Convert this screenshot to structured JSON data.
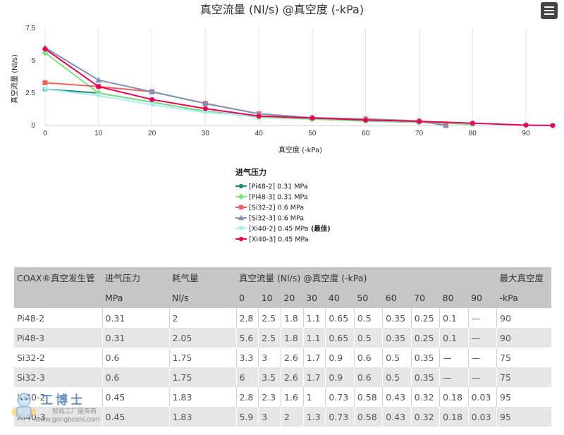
{
  "menu": {
    "icon": "hamburger-menu-icon"
  },
  "chart_data": {
    "type": "line",
    "title": "真空流量 (Nl/s) @真空度 (-kPa)",
    "xlabel": "真空度 (-kPa)",
    "ylabel": "真空流量 (Nl/s)",
    "xlim": [
      0,
      95
    ],
    "ylim": [
      0,
      7.5
    ],
    "x_ticks": [
      0,
      10,
      20,
      30,
      40,
      50,
      60,
      70,
      80,
      90
    ],
    "y_ticks": [
      0,
      2.5,
      5,
      7.5
    ],
    "grid": "vertical",
    "legend": {
      "title": "进气压力",
      "placement": "bottom-center"
    },
    "series": [
      {
        "name": "[Pi48-2] 0.31 MPa",
        "color": "#1a8a7a",
        "marker": "circle",
        "points": [
          [
            0,
            2.8
          ],
          [
            10,
            2.5
          ],
          [
            20,
            1.8
          ],
          [
            30,
            1.1
          ],
          [
            40,
            0.65
          ],
          [
            50,
            0.5
          ],
          [
            60,
            0.35
          ],
          [
            70,
            0.25
          ],
          [
            80,
            0.1
          ]
        ]
      },
      {
        "name": "[Pi48-3] 0.31 MPa",
        "color": "#7fe07f",
        "marker": "diamond",
        "points": [
          [
            0,
            5.6
          ],
          [
            10,
            2.5
          ],
          [
            20,
            1.8
          ],
          [
            30,
            1.1
          ],
          [
            40,
            0.65
          ],
          [
            50,
            0.5
          ],
          [
            60,
            0.35
          ],
          [
            70,
            0.25
          ],
          [
            80,
            0.1
          ]
        ]
      },
      {
        "name": "[Si32-2] 0.6 MPa",
        "color": "#f06060",
        "marker": "square",
        "points": [
          [
            0,
            3.3
          ],
          [
            10,
            3
          ],
          [
            20,
            2.6
          ],
          [
            30,
            1.7
          ],
          [
            40,
            0.9
          ],
          [
            50,
            0.6
          ],
          [
            60,
            0.5
          ],
          [
            70,
            0.35
          ],
          [
            75,
            0
          ]
        ]
      },
      {
        "name": "[Si32-3] 0.6 MPa",
        "color": "#7f92b8",
        "marker": "triangle",
        "points": [
          [
            0,
            6
          ],
          [
            10,
            3.5
          ],
          [
            20,
            2.6
          ],
          [
            30,
            1.7
          ],
          [
            40,
            0.9
          ],
          [
            50,
            0.6
          ],
          [
            60,
            0.5
          ],
          [
            70,
            0.35
          ],
          [
            75,
            0
          ]
        ]
      },
      {
        "name": "[Xi40-2] 0.45 MPa",
        "badge": "(最佳)",
        "color": "#aaeeee",
        "marker": "triangle-down",
        "points": [
          [
            0,
            2.8
          ],
          [
            10,
            2.3
          ],
          [
            20,
            1.6
          ],
          [
            30,
            1
          ],
          [
            40,
            0.73
          ],
          [
            50,
            0.58
          ],
          [
            60,
            0.43
          ],
          [
            70,
            0.32
          ],
          [
            80,
            0.18
          ],
          [
            90,
            0.03
          ],
          [
            95,
            0
          ]
        ]
      },
      {
        "name": "[Xi40-3] 0.45 MPa",
        "color": "#e8005a",
        "marker": "circle",
        "points": [
          [
            0,
            5.9
          ],
          [
            10,
            3
          ],
          [
            20,
            2
          ],
          [
            30,
            1.3
          ],
          [
            40,
            0.73
          ],
          [
            50,
            0.58
          ],
          [
            60,
            0.43
          ],
          [
            70,
            0.32
          ],
          [
            80,
            0.18
          ],
          [
            90,
            0.03
          ],
          [
            95,
            0
          ]
        ]
      }
    ]
  },
  "table": {
    "header1": [
      "COAX®真空发生管",
      "进气压力",
      "耗气量",
      "真空流量 (Nl/s) @真空度 (-kPa)",
      "最大真空度"
    ],
    "header2": [
      "",
      "MPa",
      "Nl/s",
      "0",
      "10",
      "20",
      "30",
      "40",
      "50",
      "60",
      "70",
      "80",
      "90",
      "-kPa"
    ],
    "rows": [
      [
        "Pi48-2",
        "0.31",
        "2",
        "2.8",
        "2.5",
        "1.8",
        "1.1",
        "0.65",
        "0.5",
        "0.35",
        "0.25",
        "0.1",
        "—",
        "90"
      ],
      [
        "Pi48-3",
        "0.31",
        "2.05",
        "5.6",
        "2.5",
        "1.8",
        "1.1",
        "0.65",
        "0.5",
        "0.35",
        "0.25",
        "0.1",
        "—",
        "90"
      ],
      [
        "Si32-2",
        "0.6",
        "1.75",
        "3.3",
        "3",
        "2.6",
        "1.7",
        "0.9",
        "0.6",
        "0.5",
        "0.35",
        "—",
        "—",
        "75"
      ],
      [
        "Si32-3",
        "0.6",
        "1.75",
        "6",
        "3.5",
        "2.6",
        "1.7",
        "0.9",
        "0.6",
        "0.5",
        "0.35",
        "—",
        "—",
        "75"
      ],
      [
        "Xi40-2",
        "0.45",
        "1.83",
        "2.8",
        "2.3",
        "1.6",
        "1",
        "0.73",
        "0.58",
        "0.43",
        "0.32",
        "0.18",
        "0.03",
        "95"
      ],
      [
        "Xi40-3",
        "0.45",
        "1.83",
        "5.9",
        "3",
        "2",
        "1.3",
        "0.73",
        "0.58",
        "0.43",
        "0.32",
        "0.18",
        "0.03",
        "95"
      ]
    ]
  },
  "watermark": {
    "text": "工博士",
    "sub": "智能工厂服务商",
    "url": "www.gongboshi.com"
  }
}
